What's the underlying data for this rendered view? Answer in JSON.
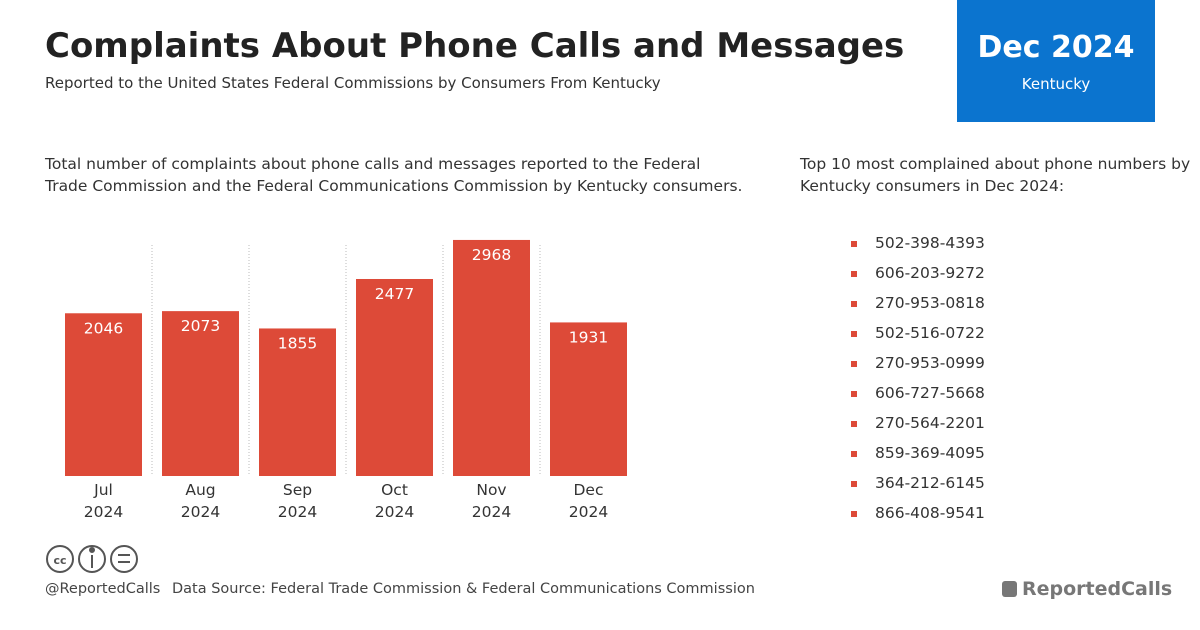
{
  "header": {
    "title": "Complaints About Phone Calls and Messages",
    "subtitle": "Reported to the United States Federal Commissions by Consumers From Kentucky"
  },
  "badge": {
    "period": "Dec 2024",
    "state": "Kentucky"
  },
  "chart_data": {
    "type": "bar",
    "description": "Total number of complaints about phone calls and messages reported to the Federal Trade Commission and the Federal Communications Commission by Kentucky consumers.",
    "categories": [
      "Jul 2024",
      "Aug 2024",
      "Sep 2024",
      "Oct 2024",
      "Nov 2024",
      "Dec 2024"
    ],
    "values": [
      2046,
      2073,
      1855,
      2477,
      2968,
      1931
    ],
    "color": "#dd4a38",
    "ylim": [
      0,
      3000
    ]
  },
  "top_numbers": {
    "heading": "Top 10 most complained about phone numbers by Kentucky consumers in Dec 2024:",
    "items": [
      "502-398-4393",
      "606-203-9272",
      "270-953-0818",
      "502-516-0722",
      "270-953-0999",
      "606-727-5668",
      "270-564-2201",
      "859-369-4095",
      "364-212-6145",
      "866-408-9541"
    ]
  },
  "footer": {
    "handle": "@ReportedCalls",
    "source": "Data Source: Federal Trade Commission & Federal Communications Commission",
    "brand": "ReportedCalls"
  }
}
